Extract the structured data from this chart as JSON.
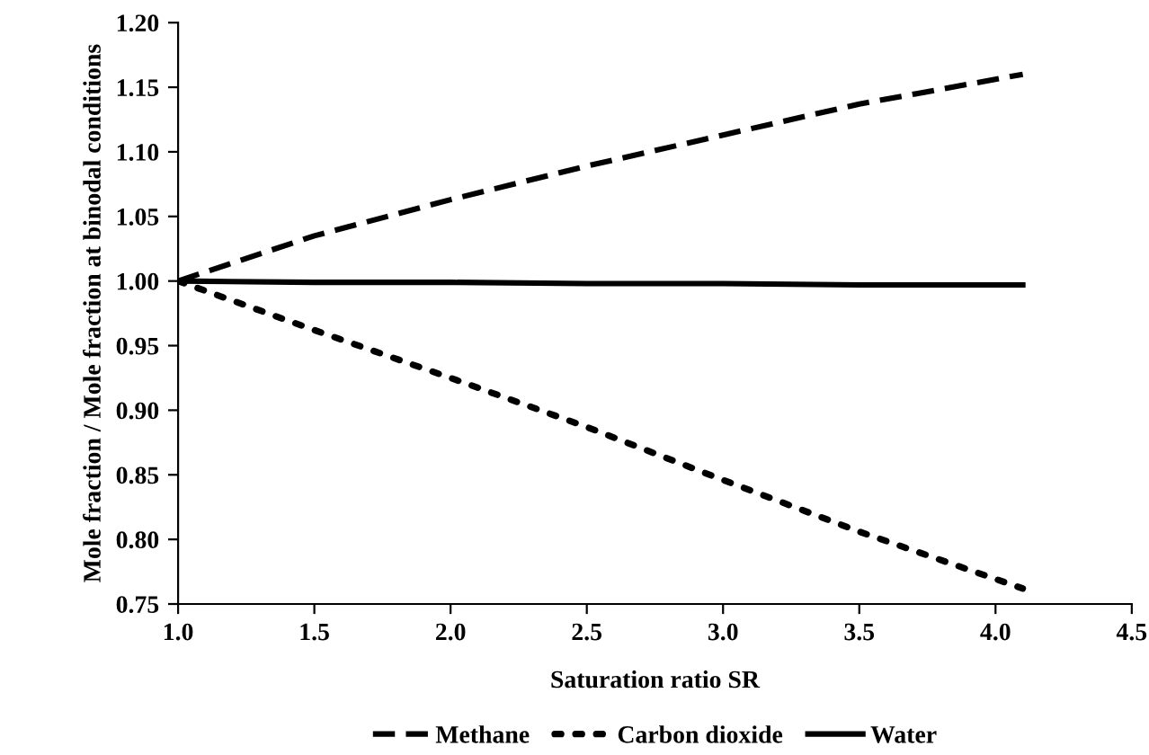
{
  "chart_data": {
    "type": "line",
    "xlabel": "Saturation ratio SR",
    "ylabel": "Mole fraction / Mole fraction at binodal conditions",
    "xlim": [
      1.0,
      4.5
    ],
    "xticks": [
      {
        "value": 1.0,
        "label": "1.0"
      },
      {
        "value": 1.5,
        "label": "1.5"
      },
      {
        "value": 2.0,
        "label": "2.0"
      },
      {
        "value": 2.5,
        "label": "2.5"
      },
      {
        "value": 3.0,
        "label": "3.0"
      },
      {
        "value": 3.5,
        "label": "3.5"
      },
      {
        "value": 4.0,
        "label": "4.0"
      },
      {
        "value": 4.5,
        "label": "4.5"
      }
    ],
    "ylim": [
      0.75,
      1.2
    ],
    "yticks": [
      {
        "value": 0.75,
        "label": "0.75"
      },
      {
        "value": 0.8,
        "label": "0.80"
      },
      {
        "value": 0.85,
        "label": "0.85"
      },
      {
        "value": 0.9,
        "label": "0.90"
      },
      {
        "value": 0.95,
        "label": "0.95"
      },
      {
        "value": 1.0,
        "label": "1.00"
      },
      {
        "value": 1.05,
        "label": "1.05"
      },
      {
        "value": 1.1,
        "label": "1.10"
      },
      {
        "value": 1.15,
        "label": "1.15"
      },
      {
        "value": 1.2,
        "label": "1.20"
      }
    ],
    "grid": false,
    "legend": "bottom",
    "marker": "none",
    "x": [
      1.0,
      1.5,
      2.0,
      2.5,
      3.0,
      3.5,
      4.1
    ],
    "series": [
      {
        "name": "Methane",
        "color": "#000000",
        "line_style": "dashed",
        "values": [
          1.0,
          1.035,
          1.063,
          1.089,
          1.113,
          1.137,
          1.16
        ]
      },
      {
        "name": "Carbon dioxide",
        "color": "#000000",
        "line_style": "dotted",
        "values": [
          1.0,
          0.962,
          0.925,
          0.887,
          0.846,
          0.806,
          0.762
        ]
      },
      {
        "name": "Water",
        "color": "#000000",
        "line_style": "solid",
        "values": [
          1.0,
          0.999,
          0.999,
          0.998,
          0.998,
          0.997,
          0.997
        ]
      }
    ]
  }
}
